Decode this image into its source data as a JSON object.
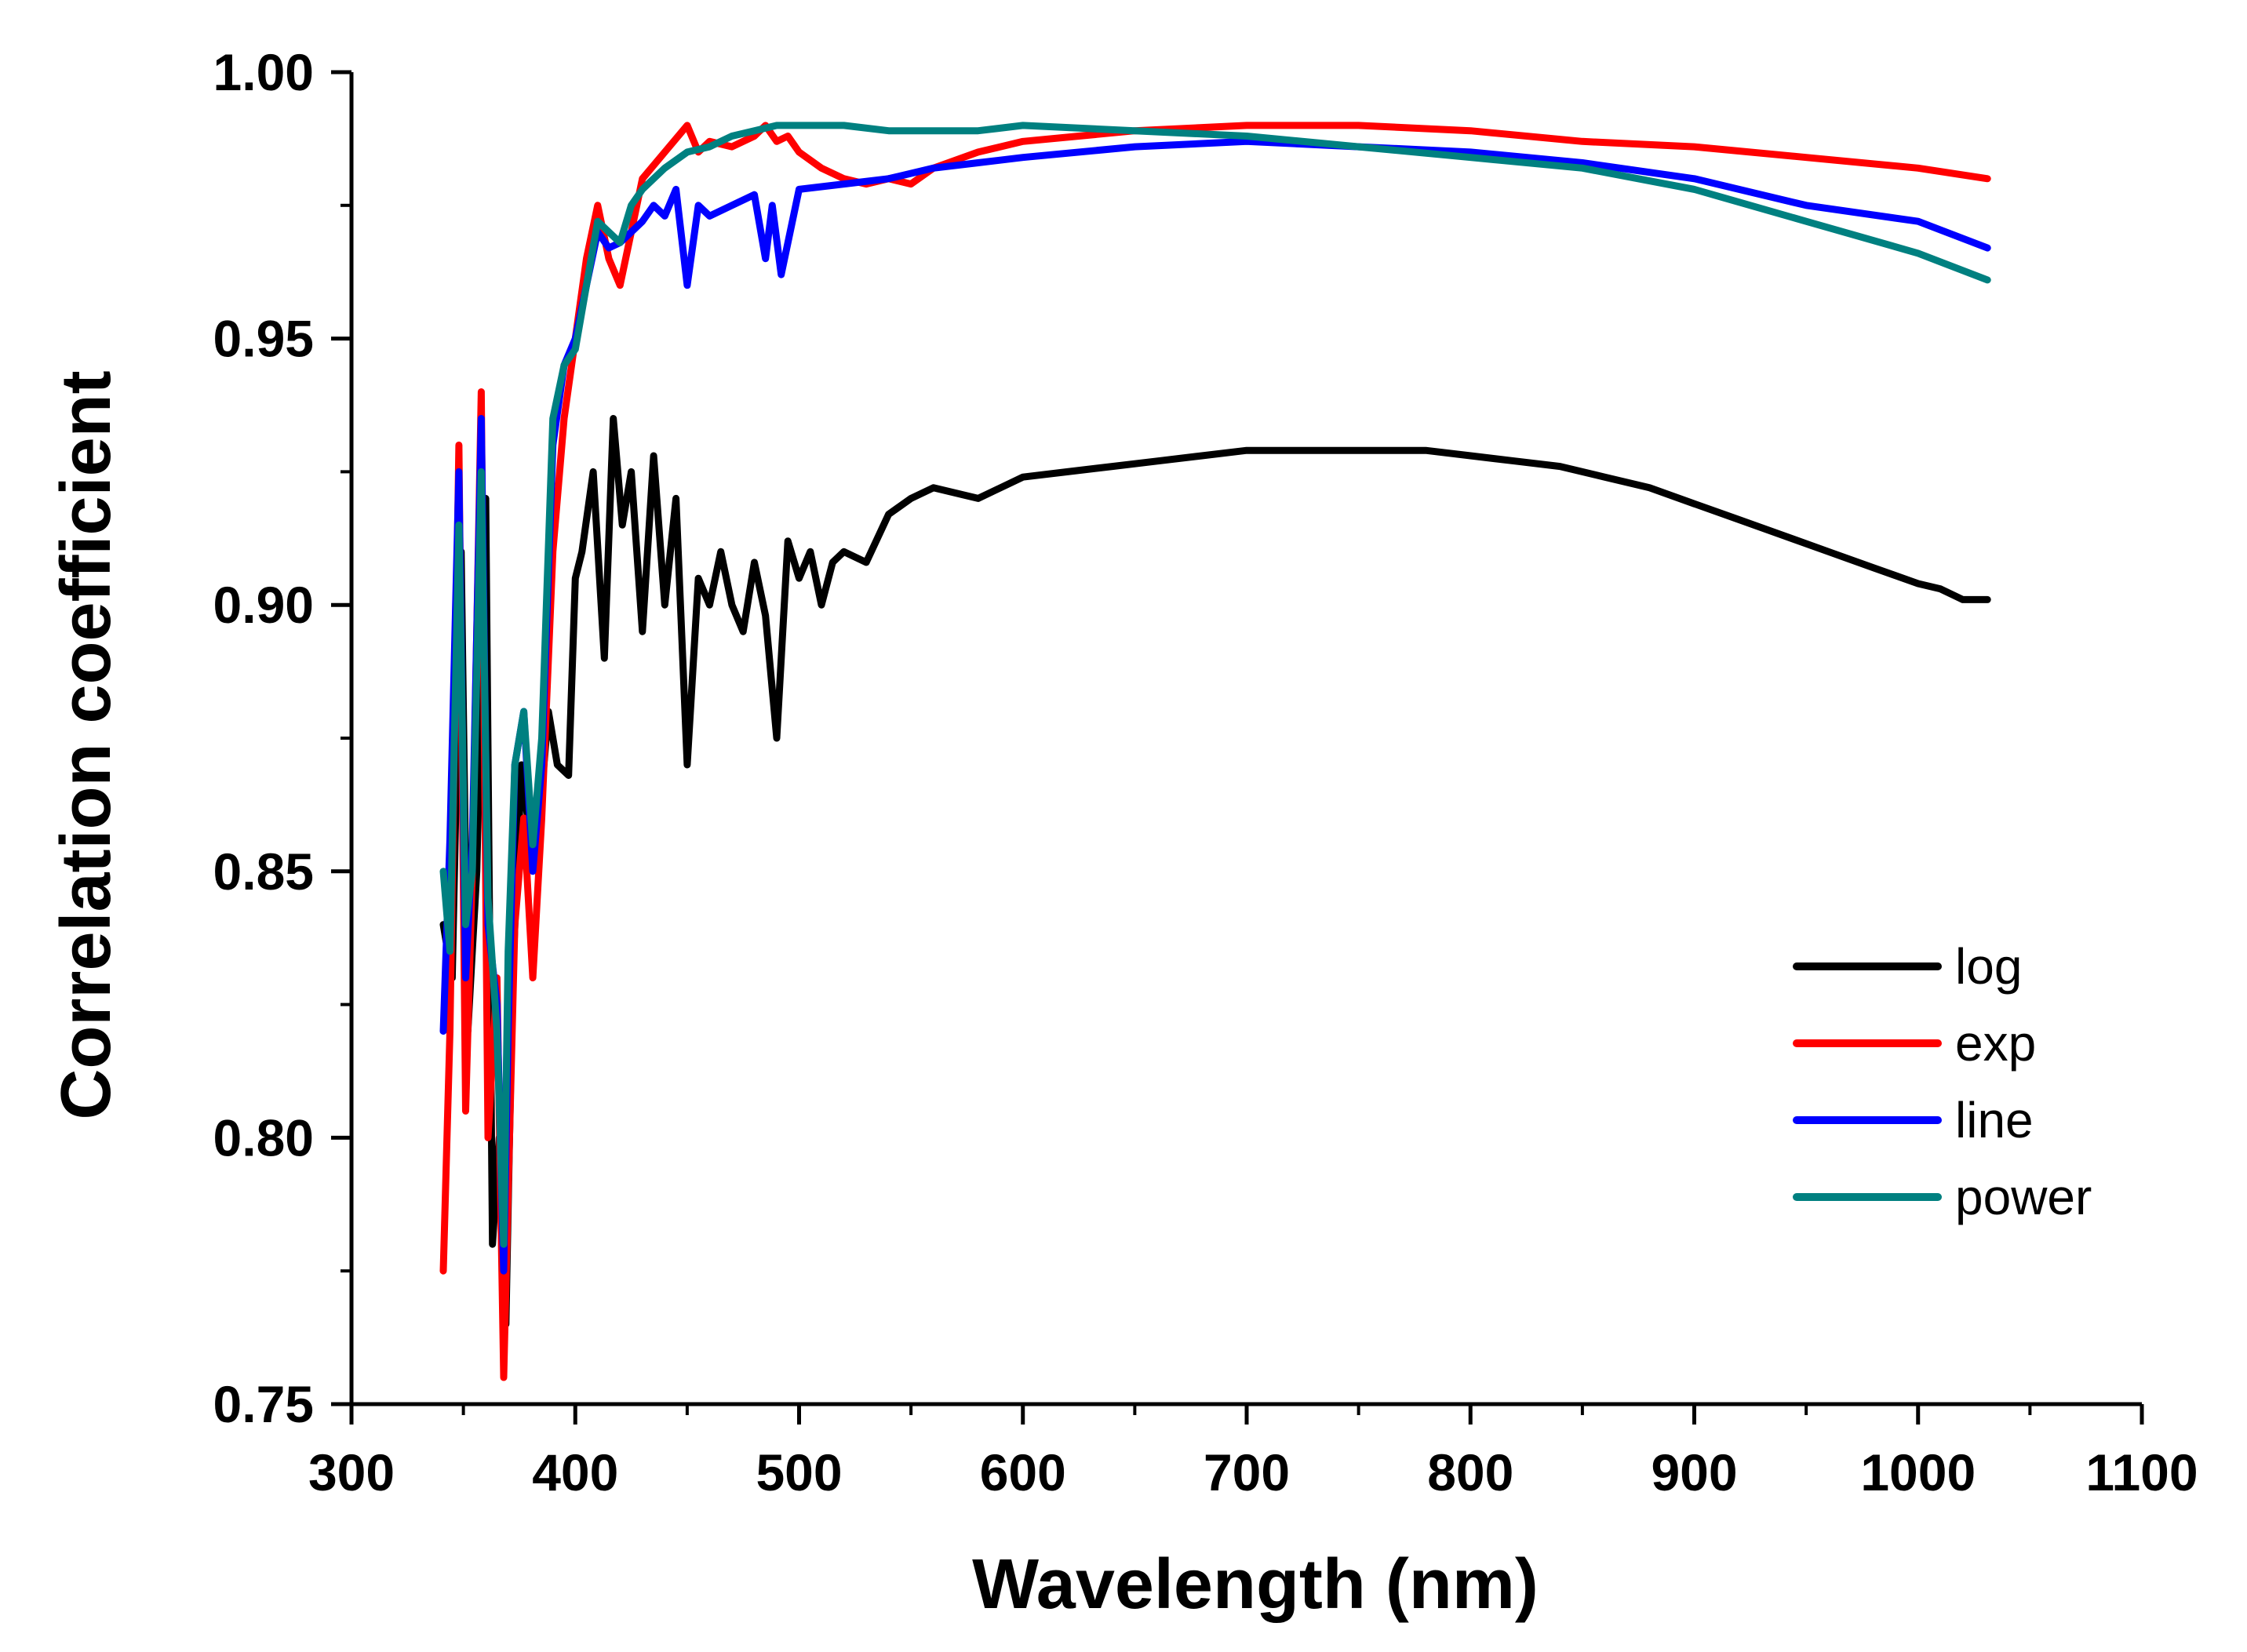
{
  "chart_data": {
    "type": "line",
    "title": "",
    "xlabel": "Wavelength (nm)",
    "ylabel": "Correlation coefficient",
    "xlim": [
      300,
      1100
    ],
    "ylim": [
      0.75,
      1.0
    ],
    "xticks": [
      300,
      400,
      500,
      600,
      700,
      800,
      900,
      1000,
      1100
    ],
    "xtick_labels": [
      "300",
      "400",
      "500",
      "600",
      "700",
      "800",
      "900",
      "1000",
      "1100"
    ],
    "yticks": [
      0.75,
      0.8,
      0.85,
      0.9,
      0.95,
      1.0
    ],
    "ytick_labels": [
      "0.75",
      "0.80",
      "0.85",
      "0.90",
      "0.95",
      "1.00"
    ],
    "grid": false,
    "legend_position": "lower-right",
    "series": [
      {
        "name": "log",
        "color": "#000000",
        "x": [
          341,
          345,
          349,
          352,
          356,
          360,
          363,
          366,
          369,
          372,
          376,
          380,
          384,
          388,
          392,
          397,
          400,
          403,
          408,
          413,
          417,
          421,
          425,
          430,
          435,
          440,
          445,
          450,
          455,
          460,
          465,
          470,
          475,
          480,
          485,
          490,
          495,
          500,
          505,
          510,
          515,
          520,
          530,
          540,
          550,
          560,
          580,
          600,
          620,
          640,
          660,
          680,
          700,
          720,
          740,
          760,
          780,
          800,
          820,
          840,
          860,
          880,
          900,
          920,
          940,
          960,
          980,
          1000,
          1010,
          1020,
          1031
        ],
        "y": [
          0.84,
          0.83,
          0.91,
          0.82,
          0.85,
          0.92,
          0.78,
          0.8,
          0.765,
          0.83,
          0.87,
          0.855,
          0.86,
          0.88,
          0.87,
          0.868,
          0.905,
          0.91,
          0.925,
          0.89,
          0.935,
          0.915,
          0.925,
          0.895,
          0.928,
          0.9,
          0.92,
          0.87,
          0.905,
          0.9,
          0.91,
          0.9,
          0.895,
          0.908,
          0.898,
          0.875,
          0.912,
          0.905,
          0.91,
          0.9,
          0.908,
          0.91,
          0.908,
          0.917,
          0.92,
          0.922,
          0.92,
          0.924,
          0.925,
          0.926,
          0.927,
          0.928,
          0.929,
          0.929,
          0.929,
          0.929,
          0.929,
          0.928,
          0.927,
          0.926,
          0.924,
          0.922,
          0.919,
          0.916,
          0.913,
          0.91,
          0.907,
          0.904,
          0.903,
          0.901,
          0.901
        ]
      },
      {
        "name": "exp",
        "color": "#ff0000",
        "x": [
          341,
          344,
          348,
          351,
          354,
          358,
          361,
          365,
          368,
          370,
          373,
          377,
          381,
          385,
          390,
          395,
          400,
          405,
          410,
          415,
          420,
          425,
          430,
          440,
          450,
          455,
          460,
          470,
          480,
          485,
          490,
          495,
          500,
          510,
          520,
          530,
          540,
          550,
          560,
          580,
          600,
          650,
          700,
          750,
          800,
          850,
          900,
          950,
          1000,
          1031
        ],
        "y": [
          0.775,
          0.82,
          0.93,
          0.805,
          0.85,
          0.94,
          0.8,
          0.83,
          0.755,
          0.79,
          0.84,
          0.86,
          0.83,
          0.86,
          0.91,
          0.935,
          0.95,
          0.965,
          0.975,
          0.965,
          0.96,
          0.97,
          0.98,
          0.985,
          0.99,
          0.985,
          0.987,
          0.986,
          0.988,
          0.99,
          0.987,
          0.988,
          0.985,
          0.982,
          0.98,
          0.979,
          0.98,
          0.979,
          0.982,
          0.985,
          0.987,
          0.989,
          0.99,
          0.99,
          0.989,
          0.987,
          0.986,
          0.984,
          0.982,
          0.98
        ]
      },
      {
        "name": "line",
        "color": "#0000ff",
        "x": [
          341,
          344,
          348,
          351,
          354,
          358,
          361,
          365,
          368,
          370,
          373,
          377,
          381,
          385,
          390,
          395,
          400,
          405,
          410,
          415,
          420,
          425,
          430,
          435,
          440,
          445,
          450,
          455,
          460,
          470,
          480,
          485,
          488,
          492,
          500,
          520,
          540,
          560,
          580,
          600,
          650,
          700,
          750,
          800,
          850,
          900,
          950,
          1000,
          1031
        ],
        "y": [
          0.82,
          0.856,
          0.925,
          0.83,
          0.855,
          0.935,
          0.84,
          0.825,
          0.775,
          0.82,
          0.87,
          0.88,
          0.85,
          0.87,
          0.93,
          0.945,
          0.95,
          0.96,
          0.97,
          0.967,
          0.968,
          0.97,
          0.972,
          0.975,
          0.973,
          0.978,
          0.96,
          0.975,
          0.973,
          0.975,
          0.977,
          0.965,
          0.975,
          0.962,
          0.978,
          0.979,
          0.98,
          0.982,
          0.983,
          0.984,
          0.986,
          0.987,
          0.986,
          0.985,
          0.983,
          0.98,
          0.975,
          0.972,
          0.967
        ]
      },
      {
        "name": "power",
        "color": "#008080",
        "x": [
          341,
          344,
          348,
          351,
          354,
          358,
          361,
          365,
          368,
          370,
          373,
          377,
          381,
          385,
          390,
          395,
          400,
          405,
          410,
          415,
          420,
          425,
          430,
          440,
          450,
          460,
          470,
          480,
          490,
          500,
          520,
          540,
          560,
          580,
          600,
          650,
          700,
          750,
          800,
          850,
          900,
          950,
          1000,
          1031
        ],
        "y": [
          0.85,
          0.835,
          0.915,
          0.84,
          0.85,
          0.925,
          0.845,
          0.82,
          0.78,
          0.835,
          0.87,
          0.88,
          0.855,
          0.875,
          0.935,
          0.945,
          0.948,
          0.96,
          0.972,
          0.97,
          0.968,
          0.975,
          0.978,
          0.982,
          0.985,
          0.986,
          0.988,
          0.989,
          0.99,
          0.99,
          0.99,
          0.989,
          0.989,
          0.989,
          0.99,
          0.989,
          0.988,
          0.986,
          0.984,
          0.982,
          0.978,
          0.972,
          0.966,
          0.961
        ]
      }
    ]
  }
}
